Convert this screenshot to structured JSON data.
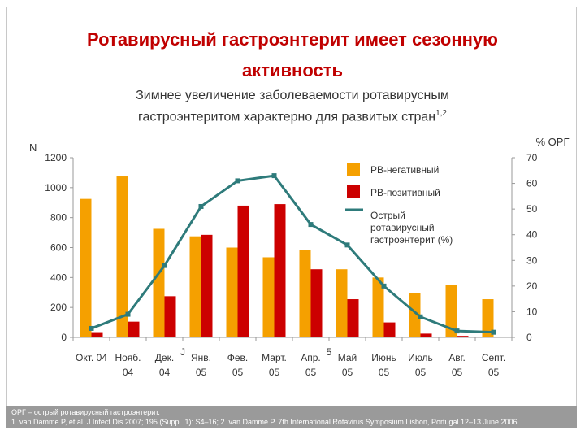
{
  "header": {
    "title_line1": "Ротавирусный гастроэнтерит имеет сезонную",
    "title_line2": "активность",
    "subtitle_line1": "Зимнее увеличение заболеваемости ротавирусным",
    "subtitle_line2": "гастроэнтеритом характерно для развитых стран",
    "subtitle_sup": "1,2"
  },
  "chart_data": {
    "type": "bar",
    "categories": [
      [
        "Окт. 04",
        ""
      ],
      [
        "Нояб.",
        "04"
      ],
      [
        "Дек.",
        "04"
      ],
      [
        "Янв.",
        "05"
      ],
      [
        "Фев.",
        "05"
      ],
      [
        "Март.",
        "05"
      ],
      [
        "Апр.",
        "05"
      ],
      [
        "Май",
        "05"
      ],
      [
        "Июнь",
        "05"
      ],
      [
        "Июль",
        "05"
      ],
      [
        "Авг.",
        "05"
      ],
      [
        "Септ.",
        "05"
      ]
    ],
    "ylabel_left": "N",
    "ylabel_right": "% ОРГ",
    "ylim_left": [
      0,
      1200
    ],
    "yticks_left": [
      0,
      200,
      400,
      600,
      800,
      1000,
      1200
    ],
    "ylim_right": [
      0,
      70
    ],
    "yticks_right": [
      0,
      10,
      20,
      30,
      40,
      50,
      60,
      70
    ],
    "grid": false,
    "legend_placement": "top-right",
    "series": [
      {
        "name": "РВ-негативный",
        "type": "bar",
        "axis": "left",
        "color": "#f5a000",
        "values": [
          925,
          1075,
          725,
          675,
          600,
          535,
          585,
          455,
          400,
          295,
          350,
          255
        ]
      },
      {
        "name": "РВ-позитивный",
        "type": "bar",
        "axis": "left",
        "color": "#cc0000",
        "values": [
          35,
          105,
          275,
          685,
          880,
          890,
          455,
          255,
          100,
          25,
          10,
          5
        ]
      },
      {
        "name": "Острый ротавирусный гастроэнтерит (%)",
        "type": "line",
        "axis": "right",
        "color": "#2e7b7b",
        "values": [
          3.5,
          9,
          28,
          51,
          61,
          63,
          44,
          36,
          20,
          8,
          2.5,
          2
        ]
      }
    ],
    "legend_lines": [
      [
        "РВ-негативный"
      ],
      [
        "РВ-позитивный"
      ],
      [
        "Острый",
        "ротавирусный",
        "гастроэнтерит (%)"
      ]
    ],
    "annotations": [
      {
        "text": "J",
        "between": [
          2,
          3
        ]
      },
      {
        "text": "5",
        "between": [
          6,
          7
        ]
      }
    ]
  },
  "footer": {
    "line1": "ОРГ – острый ротавирусный гастроэнтерит.",
    "line2": "1. van Damme P, et al. J Infect Dis 2007; 195 (Suppl. 1): S4–16; 2. van Damme P, 7th International Rotavirus Symposium Lisbon, Portugal 12–13 June 2006."
  }
}
